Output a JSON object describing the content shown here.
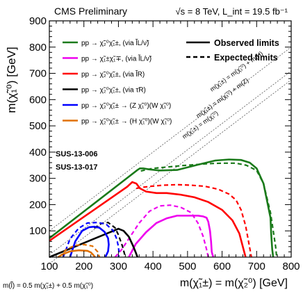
{
  "chart_data": {
    "type": "line",
    "header_left": "CMS Preliminary",
    "header_right": "√s = 8 TeV, L_int = 19.5 fb⁻¹",
    "xlabel": "m(χ̃₁±) = m(χ̃₂⁰) [GeV]",
    "ylabel": "m(χ̃₁⁰) [GeV]",
    "xlim": [
      100,
      800
    ],
    "ylim": [
      0,
      900
    ],
    "x_ticks": [
      "100",
      "200",
      "300",
      "400",
      "500",
      "600",
      "700",
      "800"
    ],
    "y_ticks": [
      "100",
      "200",
      "300",
      "400",
      "500",
      "600",
      "700",
      "800",
      "900"
    ],
    "analysis_ids": [
      "SUS-13-006",
      "SUS-13-017"
    ],
    "footnote": "m(l̃) = 0.5 m(χ̃₁±) + 0.5 m(χ̃₁⁰)",
    "style_legend": [
      {
        "label": "Observed limits",
        "style": "solid"
      },
      {
        "label": "Expected limits",
        "style": "dashed"
      }
    ],
    "series": [
      {
        "name": "pp → χ̃₂⁰χ̃₁±, (via l̃L/ν̃)",
        "color": "#1a7a1a",
        "observed": {
          "x": [
            100,
            355,
            362,
            372,
            390,
            420,
            470,
            530,
            580,
            620,
            655,
            680,
            700,
            720,
            740,
            742,
            745,
            748
          ],
          "y": [
            72,
            332,
            338,
            338,
            334,
            330,
            332,
            352,
            368,
            372,
            370,
            360,
            338,
            280,
            150,
            90,
            30,
            0
          ]
        },
        "expected": {
          "x": [
            365,
            380,
            400,
            440,
            480,
            520,
            560,
            600,
            640,
            670,
            700,
            720,
            740,
            755,
            758
          ],
          "y": [
            328,
            333,
            338,
            343,
            348,
            352,
            356,
            358,
            358,
            350,
            330,
            280,
            170,
            40,
            0
          ]
        }
      },
      {
        "name": "pp → χ̃₁±χ̃₁∓, (via l̃L/ν̃)",
        "color": "#ee00ee",
        "observed": {
          "x": [
            330,
            350,
            380,
            410,
            440,
            470,
            500,
            530,
            545,
            555,
            560,
            565,
            568,
            570,
            572,
            575
          ],
          "y": [
            0,
            50,
            95,
            130,
            148,
            158,
            158,
            158,
            155,
            150,
            135,
            100,
            60,
            20,
            10,
            0
          ]
        },
        "expected": {
          "x": [
            290,
            310,
            330,
            360,
            390,
            420,
            450,
            480,
            510,
            530,
            545,
            555,
            560
          ],
          "y": [
            0,
            30,
            70,
            130,
            175,
            195,
            198,
            190,
            170,
            130,
            80,
            30,
            0
          ]
        }
      },
      {
        "name": "pp → χ̃₂⁰χ̃₁±, (via l̃R)",
        "color": "#ff0000",
        "observed": {
          "x": [
            100,
            325,
            340,
            352,
            362,
            380,
            410,
            440,
            480,
            520,
            560,
            600,
            630,
            650,
            660,
            668
          ],
          "y": [
            62,
            268,
            286,
            280,
            262,
            250,
            244,
            244,
            238,
            228,
            210,
            180,
            140,
            90,
            40,
            0
          ]
        },
        "expected": {
          "x": [
            352,
            370,
            395,
            430,
            470,
            510,
            550,
            590,
            620,
            640,
            655,
            668,
            678,
            685
          ],
          "y": [
            262,
            266,
            270,
            274,
            276,
            274,
            270,
            258,
            240,
            218,
            180,
            120,
            50,
            0
          ]
        }
      },
      {
        "name": "pp → χ̃₂⁰χ̃₁±, (via τ̃R)",
        "color": "#000000",
        "observed": {
          "x": [
            100,
            300,
            315,
            330,
            342,
            350,
            355
          ],
          "y": [
            0,
            108,
            100,
            78,
            44,
            18,
            0
          ]
        },
        "expected": {
          "x": [
            230,
            250,
            270,
            290,
            300,
            312,
            320
          ],
          "y": [
            110,
            128,
            132,
            112,
            85,
            40,
            0
          ]
        }
      },
      {
        "name": "pp → χ̃₂⁰χ̃₁± → (Z χ̃₁⁰)(W χ̃₁⁰)",
        "color": "#0000ff",
        "observed": {
          "x": [
            160,
            175,
            195,
            215,
            230,
            245,
            260,
            270,
            272,
            270,
            265,
            262
          ],
          "y": [
            0,
            60,
            100,
            114,
            116,
            112,
            96,
            72,
            48,
            22,
            8,
            0
          ]
        },
        "expected": {
          "x": [
            140,
            160,
            185,
            210,
            240,
            265,
            285,
            295,
            300,
            302,
            300
          ],
          "y": [
            0,
            70,
            110,
            130,
            132,
            125,
            100,
            70,
            40,
            12,
            0
          ]
        }
      },
      {
        "name": "pp → χ̃₂⁰χ̃₁± → (H χ̃₁⁰)(W χ̃₁⁰)",
        "color": "#e07000",
        "observed": {
          "x": [
            125,
            140,
            160,
            185,
            210,
            220,
            226,
            230,
            232
          ],
          "y": [
            0,
            12,
            22,
            26,
            24,
            18,
            10,
            4,
            0
          ]
        },
        "expected": {
          "x": [
            128,
            150,
            175,
            200,
            225,
            240,
            245
          ],
          "y": [
            0,
            30,
            45,
            48,
            42,
            20,
            0
          ]
        }
      }
    ],
    "diagonals": [
      {
        "label": "m(χ̃₁±) = m(χ̃₁⁰)",
        "offset": 0
      },
      {
        "label": "m(χ̃₁±) = m(χ̃₁⁰) + m(Z)",
        "offset": 91
      },
      {
        "label": "m(χ̃₁±) = m(χ̃₁⁰) + m(H)",
        "offset": 125
      }
    ]
  }
}
